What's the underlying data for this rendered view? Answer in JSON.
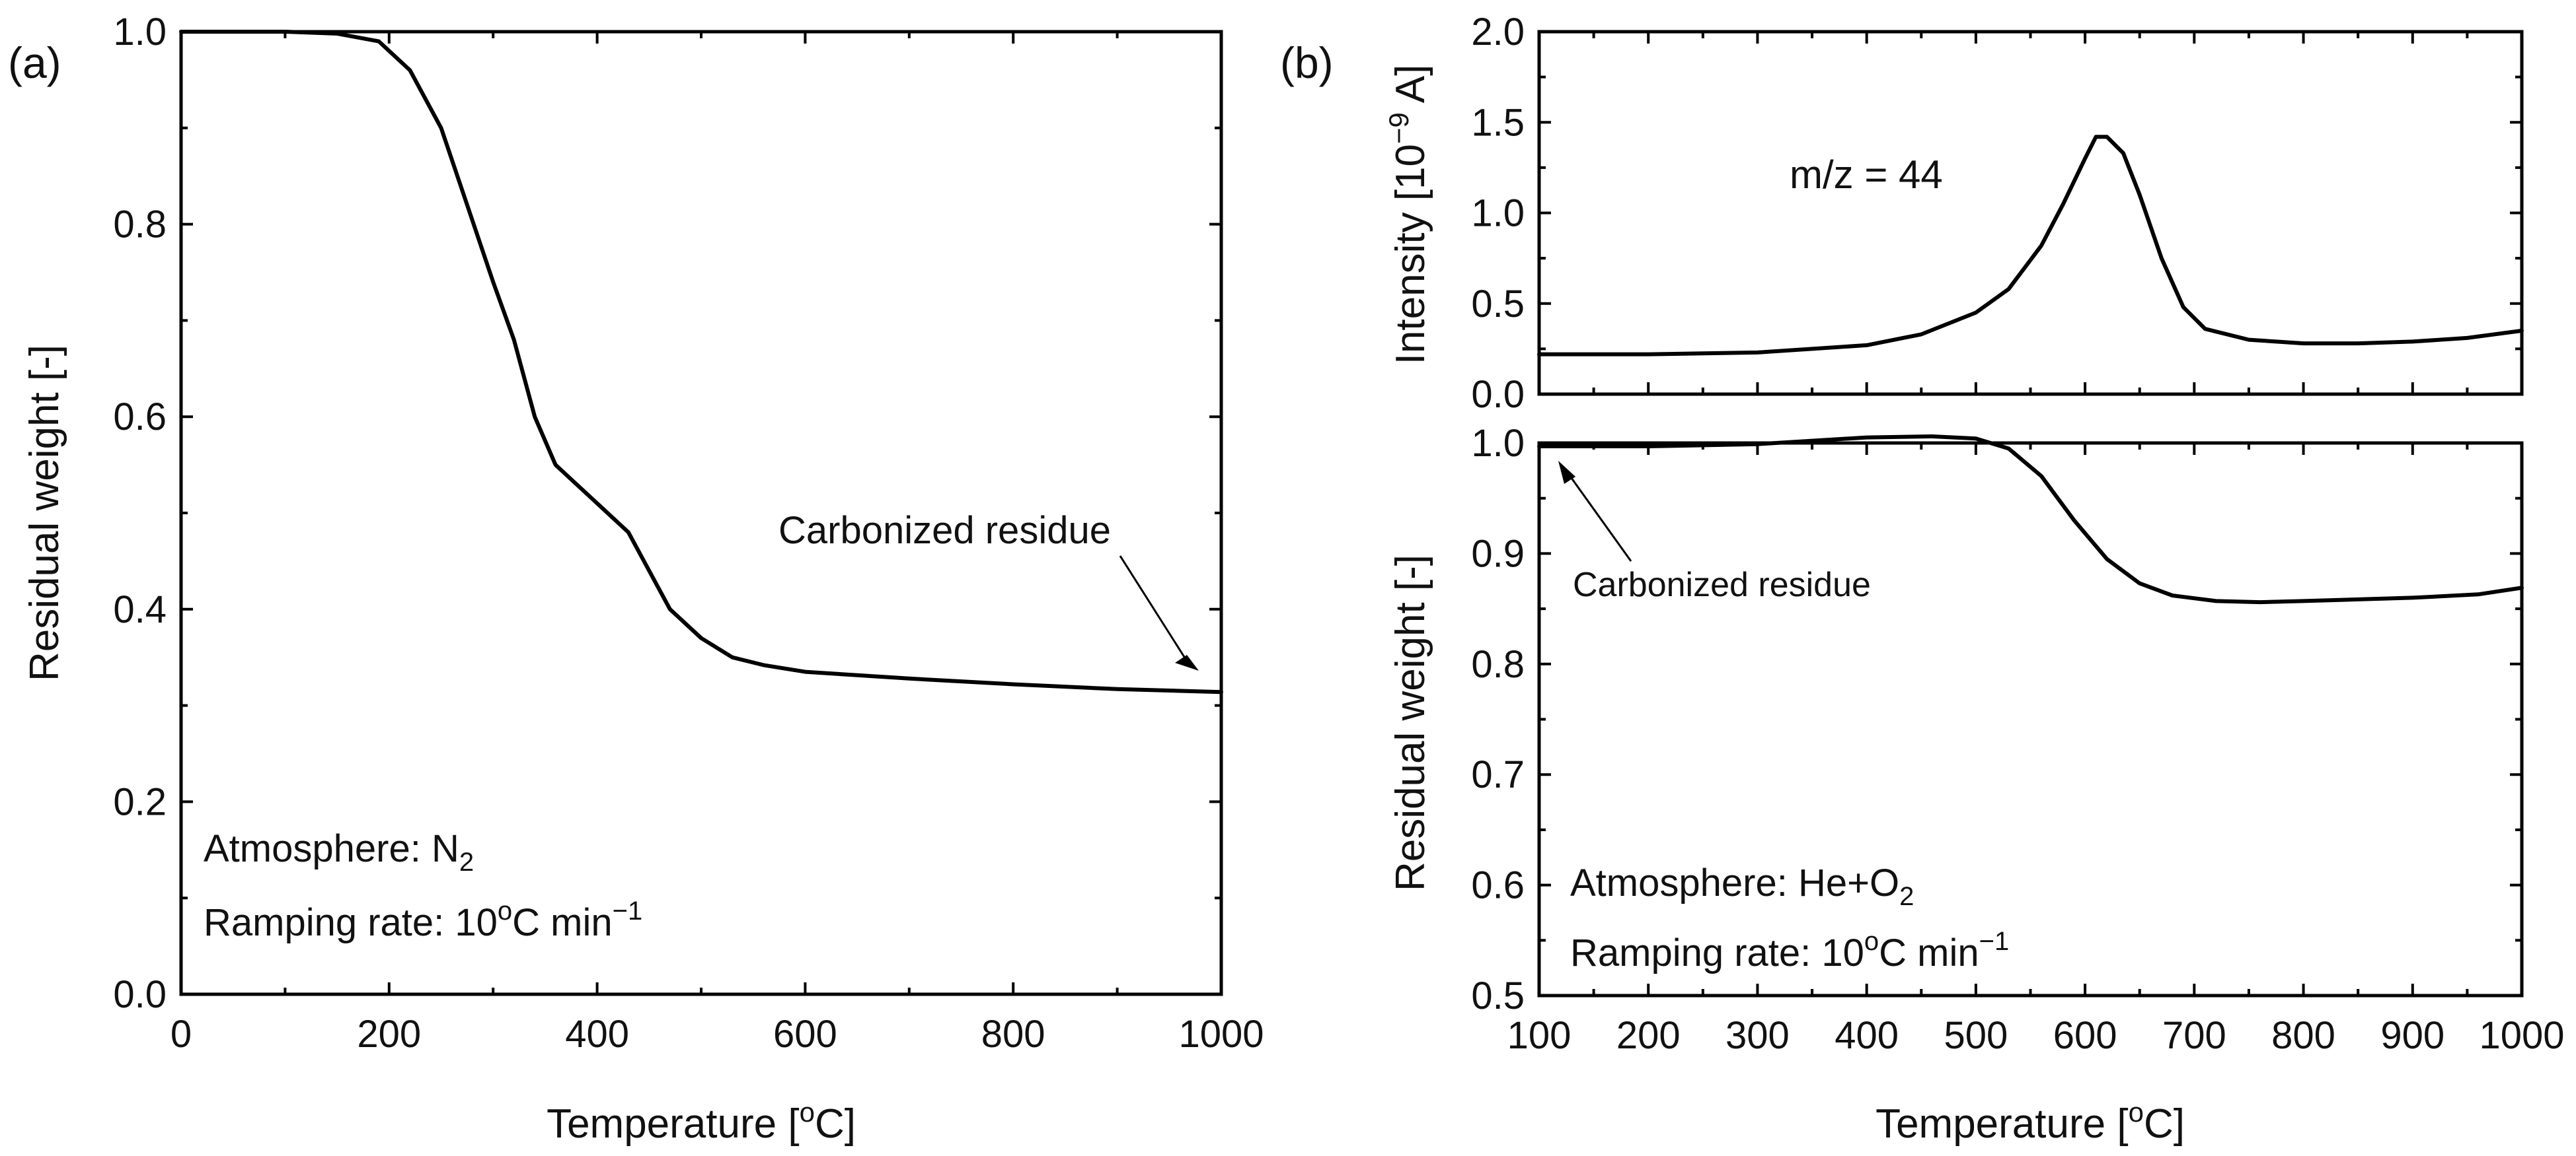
{
  "chart_data": [
    {
      "id": "a",
      "type": "line",
      "panel_label": "(a)",
      "xlabel": "Temperature [",
      "xlabel_sup": "o",
      "xlabel_end": "C]",
      "ylabel": "Residual weight [-]",
      "xlim": [
        0,
        1000
      ],
      "ylim": [
        0.0,
        1.0
      ],
      "xticks": [
        "0",
        "200",
        "400",
        "600",
        "800",
        "1000"
      ],
      "yticks": [
        "0.0",
        "0.2",
        "0.4",
        "0.6",
        "0.8",
        "1.0"
      ],
      "series": [
        {
          "name": "Residual weight (N2)",
          "points": [
            [
              0,
              1.0
            ],
            [
              100,
              1.0
            ],
            [
              150,
              0.998
            ],
            [
              190,
              0.99
            ],
            [
              220,
              0.96
            ],
            [
              250,
              0.9
            ],
            [
              275,
              0.82
            ],
            [
              300,
              0.74
            ],
            [
              320,
              0.68
            ],
            [
              340,
              0.6
            ],
            [
              360,
              0.55
            ],
            [
              380,
              0.53
            ],
            [
              400,
              0.51
            ],
            [
              430,
              0.48
            ],
            [
              450,
              0.44
            ],
            [
              470,
              0.4
            ],
            [
              500,
              0.37
            ],
            [
              530,
              0.35
            ],
            [
              560,
              0.342
            ],
            [
              600,
              0.335
            ],
            [
              700,
              0.328
            ],
            [
              800,
              0.322
            ],
            [
              900,
              0.317
            ],
            [
              1000,
              0.314
            ]
          ]
        }
      ],
      "annotations": {
        "residue": "Carbonized residue",
        "atmosphere": "Atmosphere: N",
        "atmosphere_sub": "2",
        "ramp": "Ramping rate: 10",
        "ramp_deg": "o",
        "ramp_unit": "C min",
        "ramp_exp": "−1"
      }
    },
    {
      "id": "b-top",
      "type": "line",
      "panel_label": "(b)",
      "ylabel": "Intensity [10",
      "ylabel_sup": "−9",
      "ylabel_end": " A]",
      "xlim": [
        100,
        1000
      ],
      "ylim": [
        0.0,
        2.0
      ],
      "yticks": [
        "0.0",
        "0.5",
        "1.0",
        "1.5",
        "2.0"
      ],
      "series": [
        {
          "name": "m/z = 44",
          "points": [
            [
              100,
              0.22
            ],
            [
              200,
              0.22
            ],
            [
              300,
              0.23
            ],
            [
              400,
              0.27
            ],
            [
              450,
              0.33
            ],
            [
              500,
              0.45
            ],
            [
              530,
              0.58
            ],
            [
              560,
              0.82
            ],
            [
              580,
              1.05
            ],
            [
              600,
              1.3
            ],
            [
              610,
              1.42
            ],
            [
              620,
              1.42
            ],
            [
              635,
              1.33
            ],
            [
              650,
              1.1
            ],
            [
              670,
              0.75
            ],
            [
              690,
              0.48
            ],
            [
              710,
              0.36
            ],
            [
              750,
              0.3
            ],
            [
              800,
              0.28
            ],
            [
              850,
              0.28
            ],
            [
              900,
              0.29
            ],
            [
              950,
              0.31
            ],
            [
              1000,
              0.35
            ]
          ]
        }
      ],
      "annotations": {
        "mz": "m/z = 44"
      }
    },
    {
      "id": "b-bottom",
      "type": "line",
      "xlabel": "Temperature [",
      "xlabel_sup": "o",
      "xlabel_end": "C]",
      "ylabel": "Residual weight [-]",
      "xlim": [
        100,
        1000
      ],
      "ylim": [
        0.5,
        1.0
      ],
      "xticks": [
        "100",
        "200",
        "300",
        "400",
        "500",
        "600",
        "700",
        "800",
        "900",
        "1000"
      ],
      "yticks": [
        "0.5",
        "0.6",
        "0.7",
        "0.8",
        "0.9",
        "1.0"
      ],
      "series": [
        {
          "name": "Residual weight (He+O2)",
          "points": [
            [
              100,
              0.997
            ],
            [
              200,
              0.997
            ],
            [
              300,
              0.999
            ],
            [
              400,
              1.005
            ],
            [
              460,
              1.006
            ],
            [
              500,
              1.004
            ],
            [
              530,
              0.995
            ],
            [
              560,
              0.97
            ],
            [
              590,
              0.93
            ],
            [
              620,
              0.895
            ],
            [
              650,
              0.873
            ],
            [
              680,
              0.862
            ],
            [
              720,
              0.857
            ],
            [
              760,
              0.856
            ],
            [
              800,
              0.857
            ],
            [
              900,
              0.86
            ],
            [
              960,
              0.863
            ],
            [
              1000,
              0.869
            ]
          ]
        }
      ],
      "annotations": {
        "residue": "Carbonized residue",
        "atmosphere": "Atmosphere: He+O",
        "atmosphere_sub": "2",
        "ramp": "Ramping rate: 10",
        "ramp_deg": "o",
        "ramp_unit": "C min",
        "ramp_exp": "−1"
      }
    }
  ]
}
